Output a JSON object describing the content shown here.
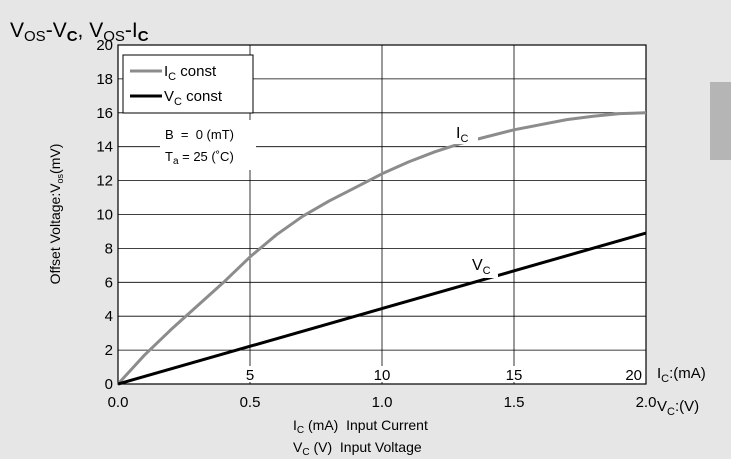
{
  "chart_data": {
    "type": "line",
    "title": {
      "p1": "V",
      "s1": "OS",
      "p2": "-V",
      "s2": "C",
      "p3": ", V",
      "s3": "OS",
      "p4": "-I",
      "s4": "C"
    },
    "ylabel": "Offset Voltage:V",
    "ylabel_sub": "os",
    "ylabel_unit": "(mV)",
    "ylim": [
      0,
      20
    ],
    "yticks": [
      "0",
      "2",
      "4",
      "6",
      "8",
      "10",
      "12",
      "14",
      "16",
      "18",
      "20"
    ],
    "xlim": [
      0,
      2.0
    ],
    "xticks_bottom": [
      "0.0",
      "0.5",
      "1.0",
      "1.5",
      "2.0"
    ],
    "xticks_inner": [
      "5",
      "10",
      "15",
      "20"
    ],
    "x_axis_ic": {
      "main": "I",
      "sub": "C",
      "unit": ":(mA)"
    },
    "x_axis_vc": {
      "main": "V",
      "sub": "C",
      "unit": ":(V)"
    },
    "xlabel_line1": {
      "main": "I",
      "sub": "C",
      "rest": " (mA)  Input Current"
    },
    "xlabel_line2": {
      "main": "V",
      "sub": "C",
      "rest": " (V)  Input Voltage"
    },
    "grid": true,
    "legend_position": "top-left",
    "legend": [
      {
        "main": "I",
        "sub": "C",
        "rest": " const",
        "color": "#8c8c8c"
      },
      {
        "main": "V",
        "sub": "C",
        "rest": " const",
        "color": "#000000"
      }
    ],
    "conditions": {
      "b_line": "B  =  0 (mT)",
      "ta_main": "T",
      "ta_sub": "a",
      "ta_rest": " = 25 (˚C)"
    },
    "series": [
      {
        "name": "IC",
        "label": {
          "main": "I",
          "sub": "C"
        },
        "color": "#8c8c8c",
        "x": [
          0.0,
          0.1,
          0.2,
          0.3,
          0.4,
          0.5,
          0.6,
          0.7,
          0.8,
          0.9,
          1.0,
          1.1,
          1.2,
          1.3,
          1.4,
          1.5,
          1.6,
          1.7,
          1.8,
          1.9,
          2.0
        ],
        "y": [
          0.0,
          1.7,
          3.2,
          4.6,
          6.0,
          7.5,
          8.8,
          9.9,
          10.8,
          11.6,
          12.4,
          13.1,
          13.7,
          14.2,
          14.6,
          15.0,
          15.3,
          15.6,
          15.8,
          15.95,
          16.0
        ]
      },
      {
        "name": "VC",
        "label": {
          "main": "V",
          "sub": "C"
        },
        "color": "#000000",
        "x": [
          0.0,
          2.0
        ],
        "y": [
          0.0,
          8.9
        ]
      }
    ]
  }
}
